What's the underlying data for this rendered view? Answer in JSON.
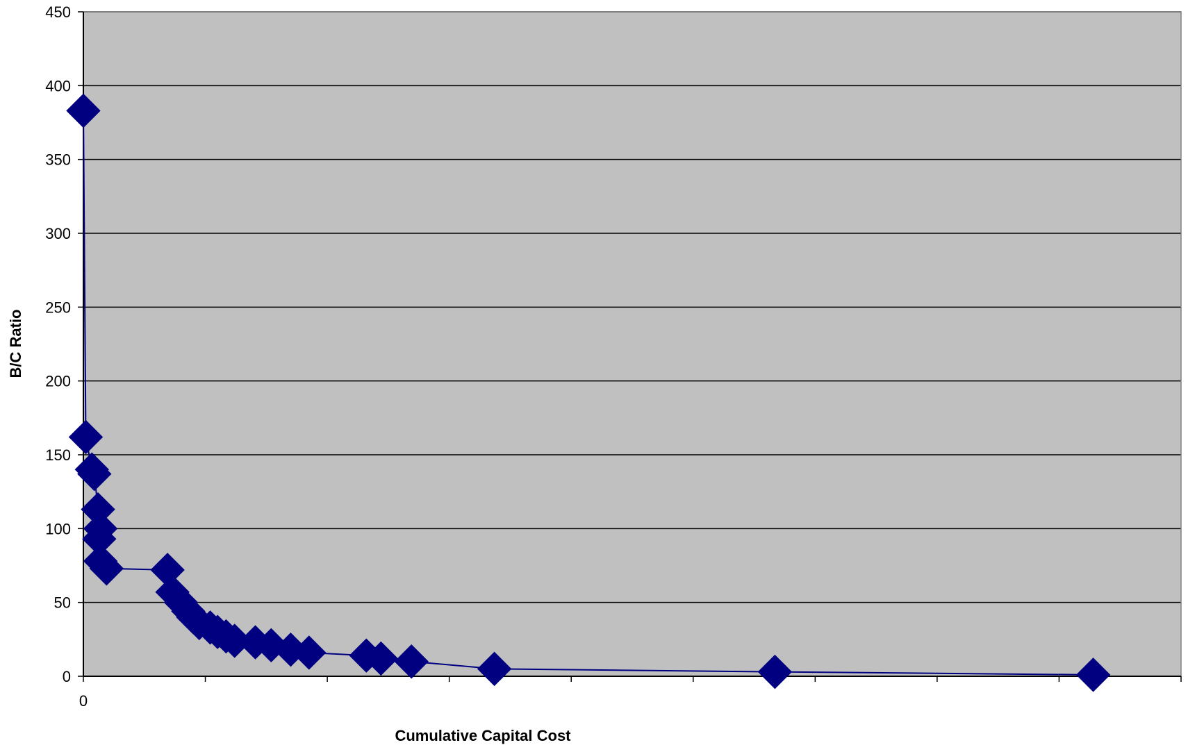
{
  "chart_data": {
    "type": "scatter",
    "xlabel": "Cumulative Capital Cost",
    "ylabel": "B/C Ratio",
    "xlim": [
      0,
      9
    ],
    "ylim": [
      0,
      450
    ],
    "y_ticks": [
      0,
      50,
      100,
      150,
      200,
      250,
      300,
      350,
      400,
      450
    ],
    "x_tick_count": 9,
    "x_tick_labels": [
      "0"
    ],
    "grid": true,
    "plot_background": "#c0c0c0",
    "series": [
      {
        "color": "#000080",
        "marker": "diamond",
        "points": [
          {
            "x": 0.0,
            "y": 383
          },
          {
            "x": 0.02,
            "y": 162
          },
          {
            "x": 0.07,
            "y": 140
          },
          {
            "x": 0.09,
            "y": 137
          },
          {
            "x": 0.12,
            "y": 113
          },
          {
            "x": 0.14,
            "y": 100
          },
          {
            "x": 0.13,
            "y": 93
          },
          {
            "x": 0.14,
            "y": 78
          },
          {
            "x": 0.19,
            "y": 73
          },
          {
            "x": 0.69,
            "y": 72
          },
          {
            "x": 0.73,
            "y": 57
          },
          {
            "x": 0.8,
            "y": 50
          },
          {
            "x": 0.86,
            "y": 44
          },
          {
            "x": 0.9,
            "y": 40
          },
          {
            "x": 0.95,
            "y": 36
          },
          {
            "x": 1.04,
            "y": 33
          },
          {
            "x": 1.1,
            "y": 30
          },
          {
            "x": 1.17,
            "y": 27
          },
          {
            "x": 1.24,
            "y": 24
          },
          {
            "x": 1.41,
            "y": 23
          },
          {
            "x": 1.54,
            "y": 21
          },
          {
            "x": 1.7,
            "y": 18
          },
          {
            "x": 1.85,
            "y": 16
          },
          {
            "x": 2.32,
            "y": 14
          },
          {
            "x": 2.44,
            "y": 12
          },
          {
            "x": 2.69,
            "y": 10
          },
          {
            "x": 3.37,
            "y": 5
          },
          {
            "x": 5.67,
            "y": 3
          },
          {
            "x": 8.28,
            "y": 1
          }
        ]
      }
    ]
  }
}
